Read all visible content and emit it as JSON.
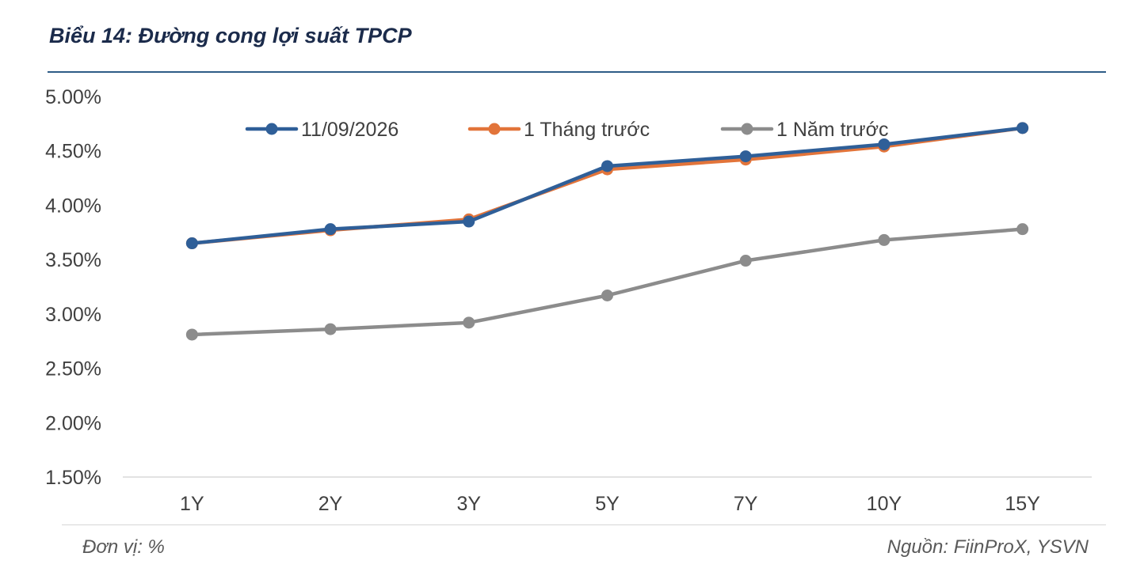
{
  "title": "Biểu 14: Đường cong lợi suất TPCP",
  "unit_note": "Đơn vị: %",
  "source_note": "Nguồn: FiinProX, YSVN",
  "chart_data": {
    "type": "line",
    "title": "",
    "xlabel": "",
    "ylabel": "",
    "categories": [
      "1Y",
      "2Y",
      "3Y",
      "5Y",
      "7Y",
      "10Y",
      "15Y"
    ],
    "ylim": [
      1.5,
      5.0
    ],
    "yticks": [
      1.5,
      2.0,
      2.5,
      3.0,
      3.5,
      4.0,
      4.5,
      5.0
    ],
    "ytick_labels": [
      "1.50%",
      "2.00%",
      "2.50%",
      "3.00%",
      "3.50%",
      "4.00%",
      "4.50%",
      "5.00%"
    ],
    "legend_position": "top",
    "grid": false,
    "series": [
      {
        "name": "11/09/2026",
        "color": "#2f5f98",
        "values": [
          3.65,
          3.78,
          3.85,
          4.36,
          4.45,
          4.56,
          4.71
        ]
      },
      {
        "name": "1 Tháng trước",
        "color": "#e2743a",
        "values": [
          3.65,
          3.77,
          3.87,
          4.33,
          4.42,
          4.54,
          4.71
        ]
      },
      {
        "name": "1 Năm trước",
        "color": "#8c8c8c",
        "values": [
          2.81,
          2.86,
          2.92,
          3.17,
          3.49,
          3.68,
          3.78
        ]
      }
    ]
  }
}
